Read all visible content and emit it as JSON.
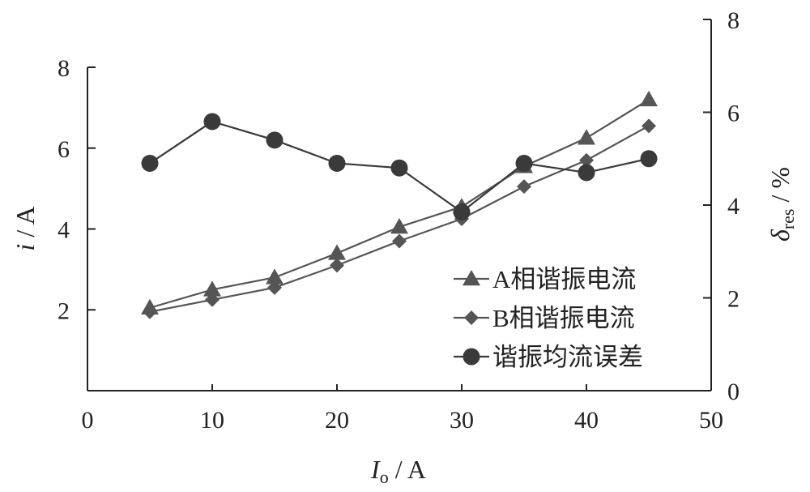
{
  "chart_data": {
    "type": "line",
    "xlabel": {
      "main": "I",
      "sub": "o",
      "unit": " / A"
    },
    "ylabel_left": {
      "main": "i",
      "unit": " / A"
    },
    "ylabel_right": {
      "main": "δ",
      "sub": "res",
      "unit": " / %"
    },
    "xlim": [
      0,
      50
    ],
    "ylim_left": [
      0,
      8
    ],
    "ylim_right": [
      0,
      8
    ],
    "x_ticks": [
      0,
      10,
      20,
      30,
      40,
      50
    ],
    "y_ticks_left": [
      2,
      4,
      6,
      8
    ],
    "y_ticks_right": [
      0,
      2,
      4,
      6,
      8
    ],
    "x_tick_labels": [
      "0",
      "10",
      "20",
      "30",
      "40",
      "50"
    ],
    "y_tick_labels_left": [
      "2",
      "4",
      "6",
      "8"
    ],
    "y_tick_labels_right": [
      "0",
      "2",
      "4",
      "6",
      "8"
    ],
    "legend_position": "bottom-right",
    "grid": false,
    "series": [
      {
        "name": "A相谐振电流",
        "axis": "left",
        "marker": "triangle",
        "color": "#555555",
        "x": [
          5,
          10,
          15,
          20,
          25,
          30,
          35,
          40,
          45
        ],
        "y": [
          2.05,
          2.5,
          2.8,
          3.4,
          4.05,
          4.55,
          5.55,
          6.25,
          7.2
        ]
      },
      {
        "name": "B相谐振电流",
        "axis": "left",
        "marker": "diamond",
        "color": "#555555",
        "x": [
          5,
          10,
          15,
          20,
          25,
          30,
          35,
          40,
          45
        ],
        "y": [
          1.95,
          2.25,
          2.55,
          3.1,
          3.7,
          4.25,
          5.05,
          5.7,
          6.55
        ]
      },
      {
        "name": "谐振均流误差",
        "axis": "right",
        "marker": "circle",
        "color": "#3a3a3a",
        "x": [
          5,
          10,
          15,
          20,
          25,
          30,
          35,
          40,
          45
        ],
        "y": [
          4.9,
          5.8,
          5.4,
          4.9,
          4.8,
          3.85,
          4.9,
          4.7,
          5.0
        ]
      }
    ]
  }
}
